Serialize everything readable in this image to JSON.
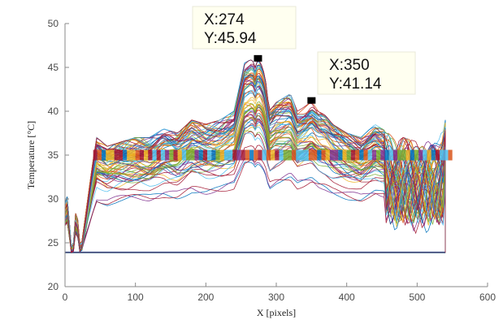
{
  "chart_data": {
    "type": "line",
    "xlabel": "X [pixels]",
    "ylabel": "Temperature [°C]",
    "xlim": [
      0,
      600
    ],
    "ylim": [
      20,
      50
    ],
    "xticks": [
      0,
      100,
      200,
      300,
      400,
      500,
      600
    ],
    "yticks": [
      20,
      25,
      30,
      35,
      40,
      45,
      50
    ],
    "grid": false,
    "legend": "none",
    "background": "#ffffff",
    "axis_color": "#8a8a8a",
    "x_range_of_data": [
      0,
      540
    ],
    "baseline_temperature": 23.9,
    "datatips": [
      {
        "x_label": "X:274",
        "y_label": "Y:45.94",
        "x": 274,
        "y": 45.94
      },
      {
        "x_label": "X:350",
        "y_label": "Y:41.14",
        "x": 350,
        "y": 41.14
      }
    ],
    "envelope": {
      "x": [
        0,
        4,
        8,
        12,
        16,
        22,
        40,
        45,
        60,
        80,
        100,
        120,
        140,
        160,
        180,
        200,
        220,
        240,
        255,
        262,
        266,
        270,
        274,
        278,
        284,
        290,
        300,
        310,
        320,
        330,
        340,
        350,
        360,
        370,
        380,
        390,
        400,
        420,
        440,
        460,
        470,
        480,
        500,
        520,
        530,
        540
      ],
      "y": [
        29.5,
        30.5,
        24.5,
        25.0,
        29.5,
        24.0,
        34.5,
        37.0,
        36.0,
        36.5,
        37.0,
        37.0,
        38.0,
        37.5,
        39.0,
        38.5,
        39.0,
        40.0,
        45.5,
        45.8,
        45.9,
        45.0,
        45.94,
        45.5,
        44.0,
        40.0,
        41.0,
        41.5,
        42.0,
        40.0,
        40.5,
        41.14,
        40.0,
        39.5,
        38.5,
        38.0,
        37.5,
        37.0,
        38.5,
        37.5,
        36.5,
        37.0,
        36.5,
        37.0,
        36.5,
        39.0
      ]
    }
  }
}
